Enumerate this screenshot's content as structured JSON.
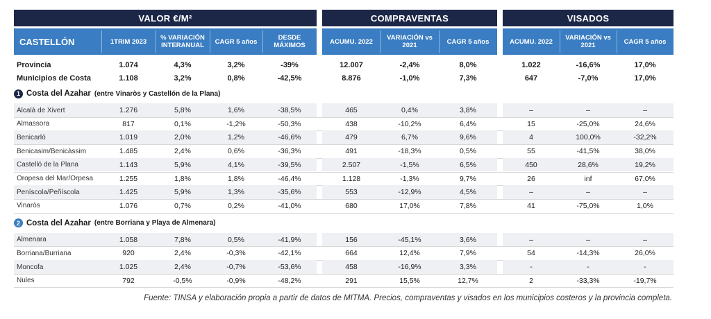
{
  "header": {
    "valor": "VALOR €/M²",
    "compraventas": "COMPRAVENTAS",
    "visados": "VISADOS"
  },
  "columns": {
    "castellon": "CASTELLÓN",
    "trim": "1TRIM 2023",
    "variacion_interanual": "% VARIACIÓN INTERANUAL",
    "cagr_valor": "CAGR 5 años",
    "desde_maximos": "DESDE MÁXIMOS",
    "acumu_comp": "ACUMU. 2022",
    "var_comp": "VARIACIÓN vs 2021",
    "cagr_comp": "CAGR 5 años",
    "acumu_vis": "ACUMU. 2022",
    "var_vis": "VARIACIÓN vs 2021",
    "cagr_vis": "CAGR 5 años"
  },
  "summary_rows": [
    {
      "name": "Provincia",
      "v": [
        "1.074",
        "4,3%",
        "3,2%",
        "-39%",
        "12.007",
        "-2,4%",
        "8,0%",
        "1.022",
        "-16,6%",
        "17,0%"
      ]
    },
    {
      "name": "Municipios de Costa",
      "v": [
        "1.108",
        "3,2%",
        "0,8%",
        "-42,5%",
        "8.876",
        "-1,0%",
        "7,3%",
        "647",
        "-7,0%",
        "17,0%"
      ]
    }
  ],
  "sections": [
    {
      "number": "1",
      "color": "#1c2747",
      "title": "Costa del Azahar",
      "subtitle": "(entre Vinaròs y Castellón de la Plana)",
      "rows": [
        {
          "name": "Alcalà de Xivert",
          "v": [
            "1.276",
            "5,8%",
            "1,6%",
            "-38,5%",
            "465",
            "0,4%",
            "3,8%",
            "–",
            "–",
            "–"
          ]
        },
        {
          "name": "Almassora",
          "v": [
            "817",
            "0,1%",
            "-1,2%",
            "-50,3%",
            "438",
            "-10,2%",
            "6,4%",
            "15",
            "-25,0%",
            "24,6%"
          ]
        },
        {
          "name": "Benicarló",
          "v": [
            "1.019",
            "2,0%",
            "1,2%",
            "-46,6%",
            "479",
            "6,7%",
            "9,6%",
            "4",
            "100,0%",
            "-32,2%"
          ]
        },
        {
          "name": "Benicasim/Benicàssim",
          "v": [
            "1.485",
            "2,4%",
            "0,6%",
            "-36,3%",
            "491",
            "-18,3%",
            "0,5%",
            "55",
            "-41,5%",
            "38,0%"
          ]
        },
        {
          "name": "Castelló de la Plana",
          "v": [
            "1.143",
            "5,9%",
            "4,1%",
            "-39,5%",
            "2.507",
            "-1,5%",
            "6,5%",
            "450",
            "28,6%",
            "19,2%"
          ]
        },
        {
          "name": "Oropesa del Mar/Orpesa",
          "v": [
            "1.255",
            "1,8%",
            "1,8%",
            "-46,4%",
            "1.128",
            "-1,3%",
            "9,7%",
            "26",
            "inf",
            "67,0%"
          ]
        },
        {
          "name": "Peníscola/Peñíscola",
          "v": [
            "1.425",
            "5,9%",
            "1,3%",
            "-35,6%",
            "553",
            "-12,9%",
            "4,5%",
            "–",
            "–",
            "–"
          ]
        },
        {
          "name": "Vinaròs",
          "v": [
            "1.076",
            "0,7%",
            "0,2%",
            "-41,0%",
            "680",
            "17,0%",
            "7,8%",
            "41",
            "-75,0%",
            "1,0%"
          ]
        }
      ]
    },
    {
      "number": "2",
      "color": "#3a7dc2",
      "title": "Costa del Azahar",
      "subtitle": "(entre Borriana y Playa de Almenara)",
      "rows": [
        {
          "name": "Almenara",
          "v": [
            "1.058",
            "7,8%",
            "0,5%",
            "-41,9%",
            "156",
            "-45,1%",
            "3,6%",
            "–",
            "–",
            "–"
          ]
        },
        {
          "name": "Borriana/Burriana",
          "v": [
            "920",
            "2,4%",
            "-0,3%",
            "-42,1%",
            "664",
            "12,4%",
            "7,9%",
            "54",
            "-14,3%",
            "26,0%"
          ]
        },
        {
          "name": "Moncofa",
          "v": [
            "1.025",
            "2,4%",
            "-0,7%",
            "-53,6%",
            "458",
            "-16,9%",
            "3,3%",
            "-",
            "-",
            "-"
          ]
        },
        {
          "name": "Nules",
          "v": [
            "792",
            "-0,5%",
            "-0,9%",
            "-48,2%",
            "291",
            "15,5%",
            "12,7%",
            "2",
            "-33,3%",
            "-19,7%"
          ]
        }
      ]
    }
  ],
  "footer": "Fuente: TINSA y elaboración propia a partir de datos de MITMA. Precios, compraventas y visados en los municipios costeros y la provincia completa."
}
